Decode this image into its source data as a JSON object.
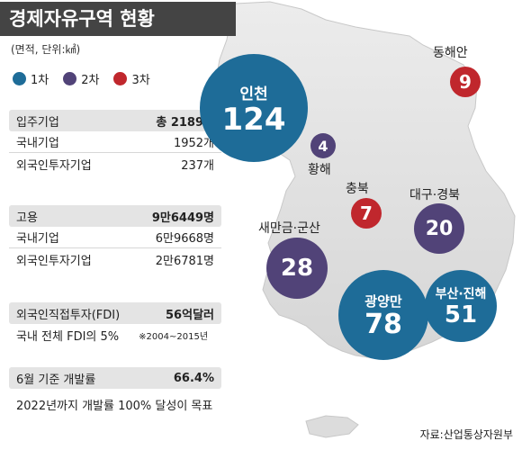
{
  "title": "경제자유구역 현황",
  "unit_note": "(면적, 단위:㎢)",
  "legend": [
    {
      "label": "1차",
      "color": "#1e6c98"
    },
    {
      "label": "2차",
      "color": "#514378"
    },
    {
      "label": "3차",
      "color": "#c0272d"
    }
  ],
  "companies": {
    "header_label": "입주기업",
    "header_value": "총 2189개",
    "rows": [
      {
        "label": "국내기업",
        "value": "1952개"
      },
      {
        "label": "외국인투자기업",
        "value": "237개"
      }
    ]
  },
  "employment": {
    "header_label": "고용",
    "header_value": "9만6449명",
    "rows": [
      {
        "label": "국내기업",
        "value": "6만9668명"
      },
      {
        "label": "외국인투자기업",
        "value": "2만6781명"
      }
    ]
  },
  "fdi": {
    "header_label": "외국인직접투자(FDI)",
    "header_value": "56억달러",
    "note": "국내 전체 FDI의 5%",
    "note_small": "※2004~2015년"
  },
  "development": {
    "header_label": "6월 기준 개발률",
    "header_value": "66.4%",
    "goal": "2022년까지 개발률 100% 달성이 목표"
  },
  "source": "자료:산업통상자원부",
  "zones": [
    {
      "name": "인천",
      "value": "124",
      "round": 1
    },
    {
      "name": "황해",
      "value": "4",
      "round": 2
    },
    {
      "name": "동해안",
      "value": "9",
      "round": 3
    },
    {
      "name": "충북",
      "value": "7",
      "round": 3
    },
    {
      "name": "대구·경북",
      "value": "20",
      "round": 2
    },
    {
      "name": "새만금·군산",
      "value": "28",
      "round": 2
    },
    {
      "name": "광양만",
      "value": "78",
      "round": 1
    },
    {
      "name": "부산·진해",
      "value": "51",
      "round": 1
    }
  ]
}
